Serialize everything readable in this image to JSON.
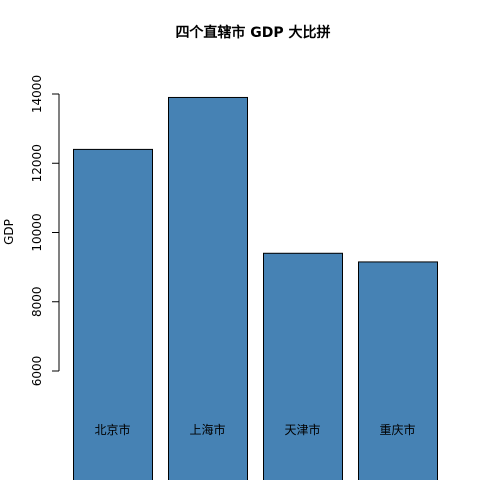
{
  "chart_data": {
    "type": "bar",
    "title": "四个直辖市 GDP 大比拼",
    "xlabel": "",
    "ylabel": "GDP",
    "categories": [
      "北京市",
      "上海市",
      "天津市",
      "重庆市"
    ],
    "values": [
      12400,
      13900,
      9400,
      9150
    ],
    "ylim": [
      6000,
      14000
    ],
    "yticks": [
      6000,
      8000,
      10000,
      12000,
      14000
    ],
    "bar_color": "#4682B4",
    "bar_border_color": "#000000",
    "grid": false,
    "legend": "none"
  }
}
